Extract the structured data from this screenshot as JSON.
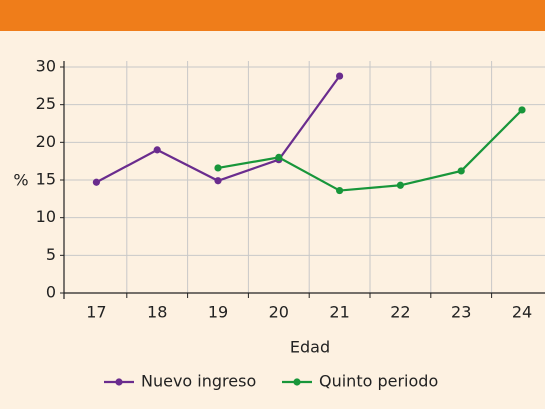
{
  "chart_data": {
    "type": "line",
    "x_label": "Edad",
    "y_label": "%",
    "categories": [
      "17",
      "18",
      "19",
      "20",
      "21",
      "22",
      "23",
      "24"
    ],
    "series": [
      {
        "name": "Nuevo ingreso",
        "color": "#6a2c8e",
        "values": [
          14.7,
          19,
          14.9,
          17.7,
          28.8,
          null,
          null,
          null
        ]
      },
      {
        "name": "Quinto periodo",
        "color": "#18963a",
        "values": [
          null,
          null,
          16.6,
          18,
          13.6,
          14.3,
          16.2,
          24.3
        ]
      }
    ],
    "ylim": [
      0,
      30
    ],
    "yticks": [
      0,
      5,
      10,
      15,
      20,
      25,
      30
    ],
    "grid": true
  }
}
